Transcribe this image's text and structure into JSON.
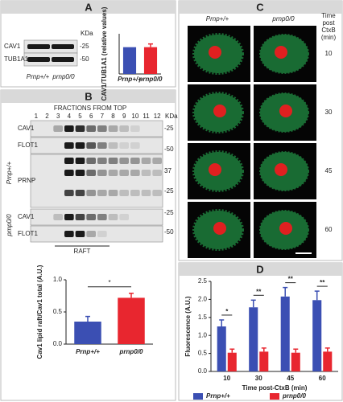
{
  "panel_a": {
    "letter": "A",
    "rows": [
      "CAV1",
      "TUB1A1"
    ],
    "unit": "KDa",
    "mw": [
      "-25",
      "-50"
    ],
    "lanes": [
      "Prnp+/+",
      "prnp0/0"
    ]
  },
  "panel_b": {
    "letter": "B",
    "header": "FRACTIONS FROM TOP",
    "fractions": [
      "1",
      "2",
      "3",
      "4",
      "5",
      "6",
      "7",
      "8",
      "9",
      "10",
      "11",
      "12"
    ],
    "unit": "KDa",
    "rows": [
      "CAV1",
      "FLOT1",
      "PRNP",
      "CAV1",
      "FLOT1"
    ],
    "mw": [
      "-25",
      "-50",
      "37",
      "-25",
      "-25",
      "-50"
    ],
    "groups": [
      "Prnp+/+",
      "prnp0/0"
    ],
    "raft": "RAFT"
  },
  "panel_c": {
    "letter": "C",
    "columns": [
      "Prnp+/+",
      "prnp0/0"
    ],
    "time_header": [
      "Time",
      "post",
      "CtxB",
      "(min)"
    ],
    "times": [
      "10",
      "30",
      "45",
      "60"
    ]
  },
  "panel_d": {
    "letter": "D"
  },
  "chart_data": [
    {
      "type": "bar",
      "ylabel": "CAV1/TUB1A1 (relative values)",
      "categories": [
        "Prnp+/+",
        "prnp0/0"
      ],
      "values": [
        1.0,
        1.0
      ],
      "errors": [
        0.0,
        0.12
      ],
      "colors": [
        "#3b4fb3",
        "#e8262f"
      ],
      "ylim": [
        0,
        1.5
      ]
    },
    {
      "type": "bar",
      "ylabel": "Cav1 lipid raft/Cav1 total (A.U.)",
      "categories": [
        "Prnp+/+",
        "prnp0/0"
      ],
      "values": [
        0.35,
        0.72
      ],
      "errors": [
        0.08,
        0.07
      ],
      "colors": [
        "#3b4fb3",
        "#e8262f"
      ],
      "ylim": [
        0,
        1.0
      ],
      "yticks": [
        {
          "value": 0,
          "label": "0.0"
        },
        {
          "value": 0.5,
          "label": "0.5"
        },
        {
          "value": 1.0,
          "label": "1.0"
        }
      ],
      "significance": "*"
    },
    {
      "type": "bar",
      "xlabel": "Time post-CtxB (min)",
      "ylabel": "Fluorescence (A.U.)",
      "categories": [
        "10",
        "30",
        "45",
        "60"
      ],
      "series": [
        {
          "name": "Prnp+/+",
          "color": "#3b4fb3",
          "values": [
            1.25,
            1.78,
            2.08,
            1.98
          ],
          "errors": [
            0.18,
            0.2,
            0.25,
            0.25
          ]
        },
        {
          "name": "prnp0/0",
          "color": "#e8262f",
          "values": [
            0.52,
            0.55,
            0.52,
            0.55
          ],
          "errors": [
            0.1,
            0.1,
            0.1,
            0.1
          ]
        }
      ],
      "significance": [
        "*",
        "**",
        "**",
        "**"
      ],
      "ylim": [
        0,
        2.5
      ],
      "yticks": [
        {
          "value": 0,
          "label": "0.0"
        },
        {
          "value": 0.5,
          "label": "0.5"
        },
        {
          "value": 1.0,
          "label": "1.0"
        },
        {
          "value": 1.5,
          "label": "1.5"
        },
        {
          "value": 2.0,
          "label": "2.0"
        },
        {
          "value": 2.5,
          "label": "2.5"
        }
      ]
    }
  ]
}
